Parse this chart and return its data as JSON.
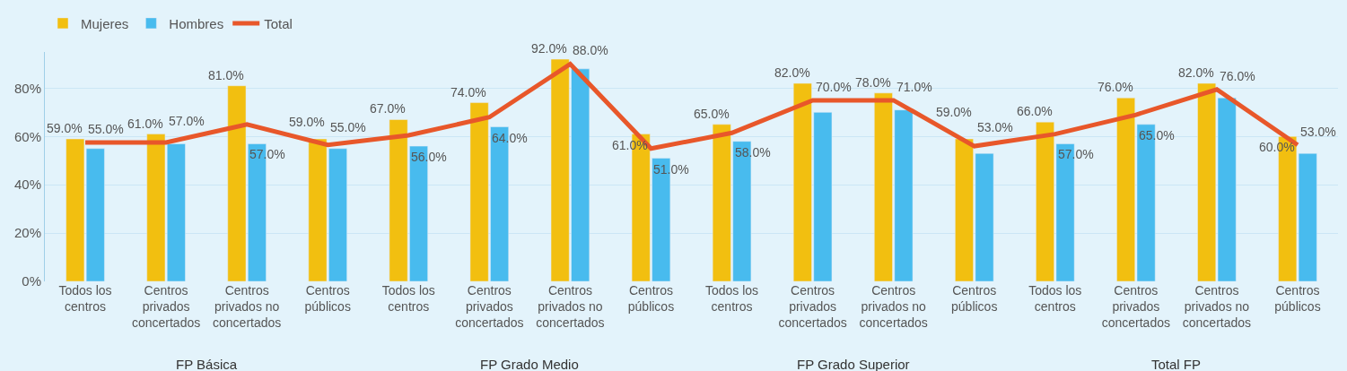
{
  "chart_data": {
    "type": "bar",
    "categories": [
      "Todos los centros",
      "Centros privados concertados",
      "Centros privados no concertados",
      "Centros públicos",
      "Todos los centros",
      "Centros privados concertados",
      "Centros privados no concertados",
      "Centros públicos",
      "Todos los centros",
      "Centros privados concertados",
      "Centros privados no concertados",
      "Centros públicos",
      "Todos los centros",
      "Centros privados concertados",
      "Centros privados no concertados",
      "Centros públicos"
    ],
    "series": [
      {
        "name": "Mujeres",
        "color": "#f2bf10",
        "values": [
          59,
          61,
          81,
          59,
          67,
          74,
          92,
          61,
          65,
          82,
          78,
          59,
          66,
          76,
          82,
          60
        ],
        "value_labels": [
          "59.0%",
          "61.0%",
          "81.0%",
          "59.0%",
          "67.0%",
          "74.0%",
          "92.0%",
          "61.0%",
          "65.0%",
          "82.0%",
          "78.0%",
          "59.0%",
          "66.0%",
          "76.0%",
          "82.0%",
          "60.0%"
        ]
      },
      {
        "name": "Hombres",
        "color": "#48bbee",
        "values": [
          55,
          57,
          57,
          55,
          56,
          64,
          88,
          51,
          58,
          70,
          71,
          53,
          57,
          65,
          76,
          53
        ],
        "value_labels": [
          "55.0%",
          "57.0%",
          "57.0%",
          "55.0%",
          "56.0%",
          "64.0%",
          "88.0%",
          "51.0%",
          "58.0%",
          "70.0%",
          "71.0%",
          "53.0%",
          "57.0%",
          "65.0%",
          "76.0%",
          "53.0%"
        ]
      },
      {
        "name": "Total",
        "type": "line",
        "color": "#e8572a",
        "marker": "none",
        "values": [
          57.5,
          57.5,
          65,
          56.5,
          60.5,
          68,
          90,
          55,
          61.5,
          75,
          75,
          56,
          61,
          69,
          79.5,
          56.5
        ]
      }
    ],
    "annotations": [
      "FP Básica",
      "FP Grado Medio",
      "FP Grado Superior",
      "Total FP"
    ],
    "ylim": [
      0,
      95
    ],
    "yticks": [
      {
        "value": 0,
        "label": "0%"
      },
      {
        "value": 20,
        "label": "20%"
      },
      {
        "value": 40,
        "label": "40%"
      },
      {
        "value": 60,
        "label": "60%"
      },
      {
        "value": 80,
        "label": "80%"
      }
    ],
    "grid": "y",
    "legend": "top left"
  }
}
